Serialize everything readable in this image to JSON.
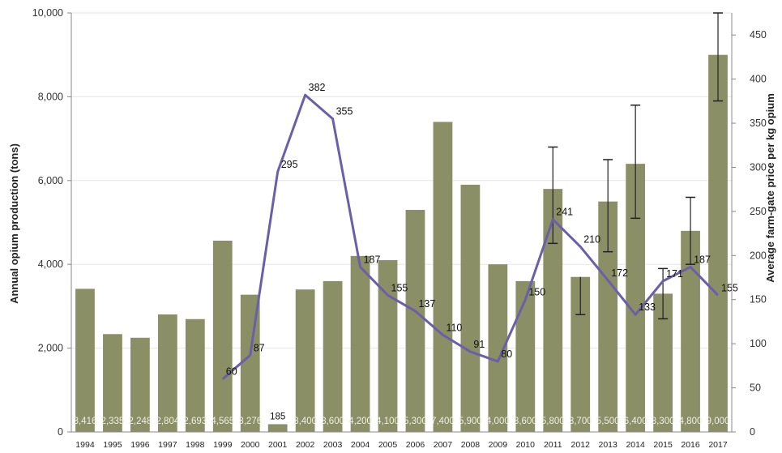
{
  "chart_data": {
    "type": "bar",
    "title": "",
    "ylabel_left": "Annual opium production (tons)",
    "ylabel_right": "Average farm-gate price per kg opium",
    "ylim_left": [
      0,
      10000
    ],
    "ylim_right": [
      0,
      475
    ],
    "yticks_left": [
      "0",
      "2,000",
      "4,000",
      "6,000",
      "8,000",
      "10,000"
    ],
    "yticks_right": [
      "0",
      "50",
      "100",
      "150",
      "200",
      "250",
      "300",
      "350",
      "400",
      "450"
    ],
    "categories": [
      "1994",
      "1995",
      "1996",
      "1997",
      "1998",
      "1999",
      "2000",
      "2001",
      "2002",
      "2003",
      "2004",
      "2005",
      "2006",
      "2007",
      "2008",
      "2009",
      "2010",
      "2011",
      "2012",
      "2013",
      "2014",
      "2015",
      "2016",
      "2017"
    ],
    "series": [
      {
        "kind": "bar",
        "values": [
          3416,
          2335,
          2248,
          2804,
          2693,
          4565,
          3276,
          185,
          3400,
          3600,
          4200,
          4100,
          5300,
          7400,
          5900,
          4000,
          3600,
          5800,
          3700,
          5500,
          6400,
          3300,
          4800,
          9000
        ],
        "labels": [
          "3,416",
          "2,335",
          "2,248",
          "2,804",
          "2,693",
          "4,565",
          "3,276",
          "185",
          "3,400",
          "3,600",
          "4,200",
          "4,100",
          "5,300",
          "7,400",
          "5,900",
          "4,000",
          "3,600",
          "5,800",
          "3,700",
          "5,500",
          "6,400",
          "3,300",
          "4,800",
          "9,000"
        ],
        "error_low": [
          null,
          null,
          null,
          null,
          null,
          null,
          null,
          null,
          null,
          null,
          null,
          null,
          null,
          null,
          null,
          null,
          null,
          4500,
          2800,
          4300,
          5100,
          2700,
          4000,
          7900
        ],
        "error_high": [
          null,
          null,
          null,
          null,
          null,
          null,
          null,
          null,
          null,
          null,
          null,
          null,
          null,
          null,
          null,
          null,
          null,
          6800,
          null,
          6500,
          7800,
          3900,
          5600,
          10000
        ],
        "color": "#8b8f66"
      },
      {
        "kind": "line",
        "x": [
          "1999",
          "2000",
          "2001",
          "2002",
          "2003",
          "2004",
          "2005",
          "2006",
          "2007",
          "2008",
          "2009",
          "2010",
          "2011",
          "2012",
          "2013",
          "2014",
          "2015",
          "2016",
          "2017"
        ],
        "values": [
          60,
          87,
          295,
          382,
          355,
          187,
          155,
          137,
          110,
          91,
          80,
          150,
          241,
          210,
          172,
          133,
          171,
          187,
          155
        ],
        "labels": [
          "60",
          "87",
          "295",
          "382",
          "355",
          "187",
          "155",
          "137",
          "110",
          "91",
          "80",
          "150",
          "241",
          "210",
          "172",
          "133",
          "171",
          "187",
          "155"
        ],
        "color": "#6b5fa8"
      }
    ],
    "grid": true,
    "error_bar_color": "#222222"
  }
}
